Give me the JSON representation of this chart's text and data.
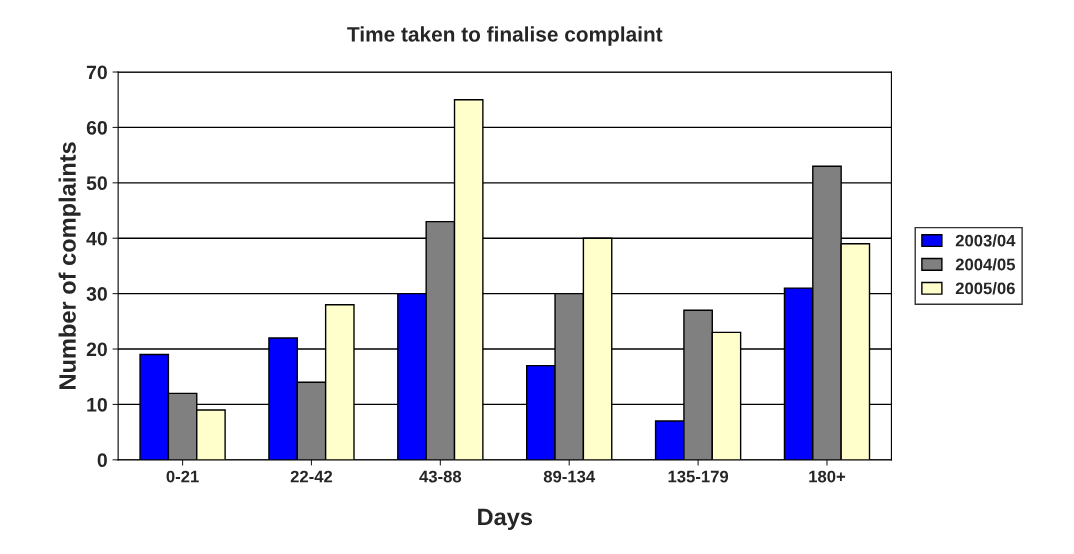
{
  "chart_data": {
    "type": "bar",
    "title": "Time taken to finalise complaint",
    "xlabel": "Days",
    "ylabel": "Number of complaints",
    "categories": [
      "0-21",
      "22-42",
      "43-88",
      "89-134",
      "135-179",
      "180+"
    ],
    "series": [
      {
        "name": "2003/04",
        "color": "#0000ff",
        "values": [
          19,
          22,
          30,
          17,
          7,
          31
        ]
      },
      {
        "name": "2004/05",
        "color": "#808080",
        "values": [
          12,
          14,
          43,
          30,
          27,
          53
        ]
      },
      {
        "name": "2005/06",
        "color": "#ffffcc",
        "values": [
          9,
          28,
          65,
          40,
          23,
          39
        ]
      }
    ],
    "ylim": [
      0,
      70
    ],
    "yticks": [
      0,
      10,
      20,
      30,
      40,
      50,
      60,
      70
    ],
    "grid": "y",
    "legend": "right"
  }
}
